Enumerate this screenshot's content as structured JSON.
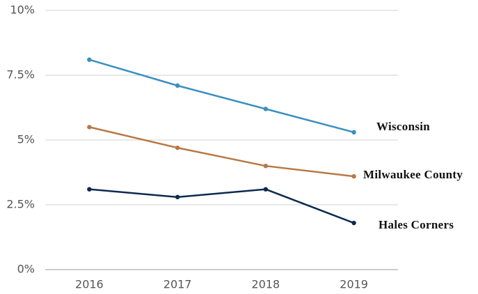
{
  "chart_data": {
    "type": "line",
    "categories": [
      "2016",
      "2017",
      "2018",
      "2019"
    ],
    "series": [
      {
        "name": "Wisconsin",
        "color": "#3a8fbf",
        "values": [
          8.1,
          7.1,
          6.2,
          5.3
        ]
      },
      {
        "name": "Milwaukee County",
        "color": "#b87845",
        "values": [
          5.5,
          4.7,
          4.0,
          3.6
        ]
      },
      {
        "name": "Hales Corners",
        "color": "#0d2a4e",
        "values": [
          3.1,
          2.8,
          3.1,
          1.8
        ]
      }
    ],
    "ylim": [
      0,
      10
    ],
    "yticks": [
      {
        "value": 0,
        "label": "0%"
      },
      {
        "value": 2.5,
        "label": "2.5%"
      },
      {
        "value": 5,
        "label": "5%"
      },
      {
        "value": 7.5,
        "label": "7.5%"
      },
      {
        "value": 10,
        "label": "10%"
      }
    ],
    "grid": true
  }
}
